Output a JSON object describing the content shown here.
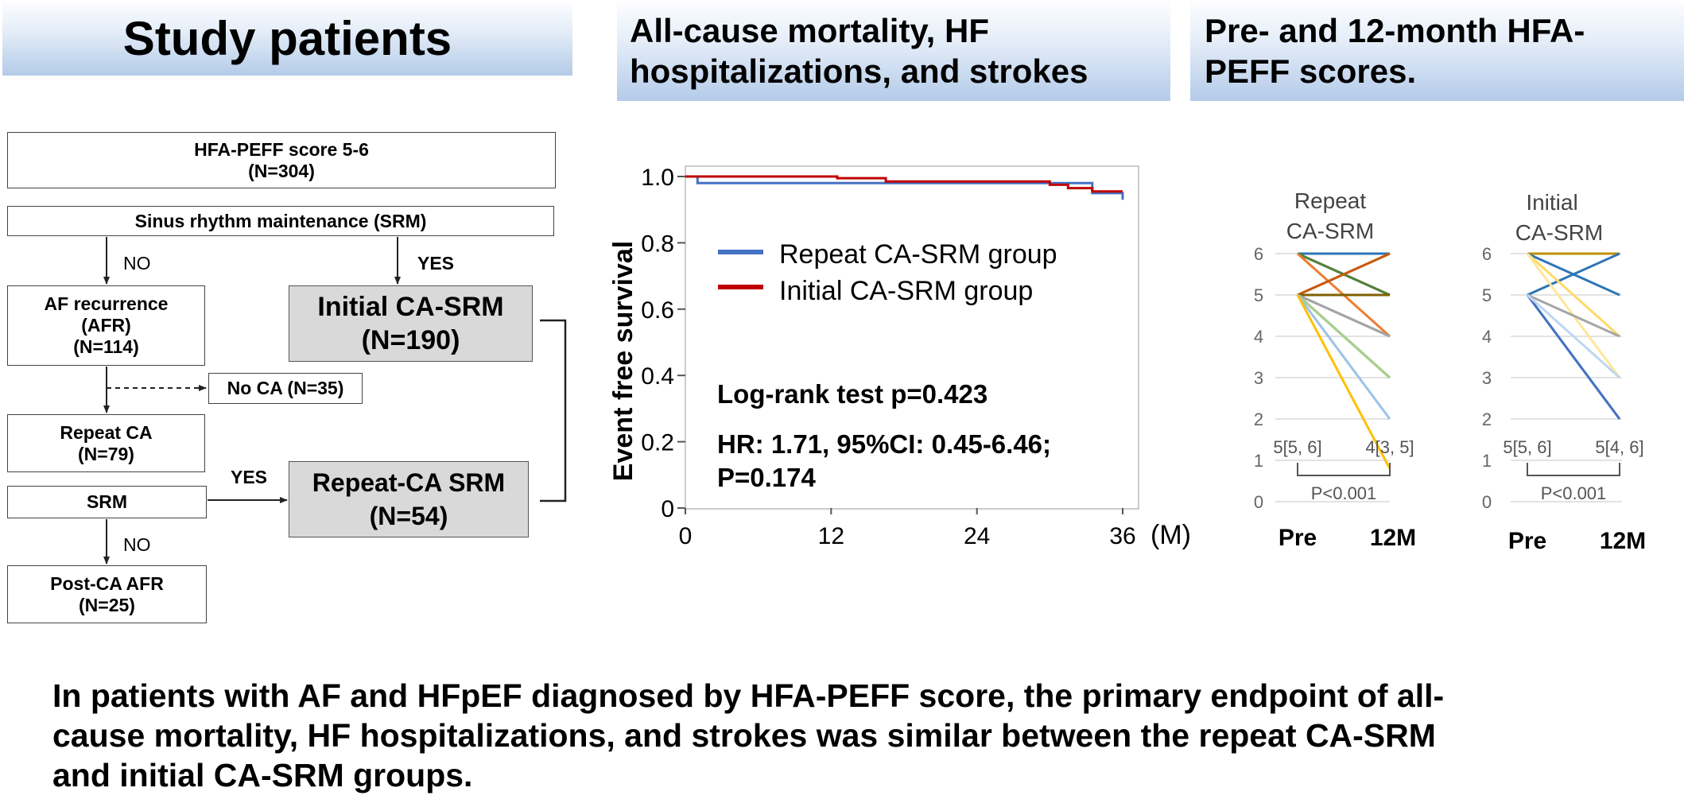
{
  "headers": {
    "study": "Study patients",
    "outcomes_line1": "All-cause mortality, HF",
    "outcomes_line2": "hospitalizations, and strokes",
    "scores_line1": "Pre- and 12-month HFA-",
    "scores_line2": "PEFF scores."
  },
  "flow": {
    "top": {
      "line1": "HFA-PEFF score 5-6",
      "line2": "(N=304)"
    },
    "srm_top": "Sinus rhythm maintenance (SRM)",
    "no1": "NO",
    "yes1": "YES",
    "afr": {
      "line1": "AF recurrence",
      "line2": "(AFR)",
      "line3": "(N=114)"
    },
    "initial": {
      "line1": "Initial CA-SRM",
      "line2": "(N=190)"
    },
    "noca": "No CA (N=35)",
    "repeat_ca": {
      "line1": "Repeat CA",
      "line2": "(N=79)"
    },
    "yes2": "YES",
    "srm": "SRM",
    "repeat_srm": {
      "line1": "Repeat-CA SRM",
      "line2": "(N=54)"
    },
    "no2": "NO",
    "post": {
      "line1": "Post-CA AFR",
      "line2": "(N=25)"
    }
  },
  "chart_data": [
    {
      "type": "line",
      "ylabel": "Event free survival",
      "xunit": "(M)",
      "xticks": [
        0,
        12,
        24,
        36
      ],
      "yticks": [
        0,
        0.2,
        0.4,
        0.6,
        0.8,
        1.0
      ],
      "xlim": [
        0,
        36
      ],
      "ylim": [
        0,
        1.0
      ],
      "colors": {
        "repeat": "#4472c4",
        "initial": "#c00000"
      },
      "series": [
        {
          "name": "Repeat CA-SRM group",
          "x": [
            0,
            1,
            1,
            33.5,
            33.5,
            36,
            36
          ],
          "y": [
            1.0,
            1.0,
            0.98,
            0.98,
            0.95,
            0.95,
            0.93
          ]
        },
        {
          "name": "Initial CA-SRM group",
          "x": [
            0,
            12.5,
            12.5,
            16.5,
            16.5,
            30,
            30,
            31.5,
            31.5,
            33.5,
            33.5,
            36
          ],
          "y": [
            1.0,
            1.0,
            0.995,
            0.995,
            0.985,
            0.985,
            0.975,
            0.975,
            0.965,
            0.965,
            0.955,
            0.955
          ]
        }
      ],
      "annotations": {
        "logrank": "Log-rank test p=0.423",
        "hr_line1": "HR: 1.71, 95%CI: 0.45-6.46;",
        "hr_line2": "P=0.174"
      }
    },
    {
      "type": "line",
      "title_line1": "Repeat",
      "title_line2": "CA-SRM",
      "categories": [
        "Pre",
        "12M"
      ],
      "yticks": [
        0,
        1,
        2,
        3,
        4,
        5,
        6
      ],
      "ylim": [
        0,
        6
      ],
      "pre_label": "5[5, 6]",
      "post_label": "4[3, 5]",
      "p_label": "P<0.001",
      "series": [
        {
          "values": [
            6,
            6
          ],
          "color": "#2e75b6"
        },
        {
          "values": [
            6,
            5
          ],
          "color": "#1f4e79"
        },
        {
          "values": [
            6,
            5
          ],
          "color": "#548235"
        },
        {
          "values": [
            6,
            4
          ],
          "color": "#ed7d31"
        },
        {
          "values": [
            5,
            6
          ],
          "color": "#ed7d31"
        },
        {
          "values": [
            5,
            6
          ],
          "color": "#c55a11"
        },
        {
          "values": [
            5,
            5
          ],
          "color": "#7f6000"
        },
        {
          "values": [
            5,
            4
          ],
          "color": "#7f7f7f"
        },
        {
          "values": [
            5,
            4
          ],
          "color": "#a5a5a5"
        },
        {
          "values": [
            5,
            3
          ],
          "color": "#375623"
        },
        {
          "values": [
            5,
            3
          ],
          "color": "#a9d18e"
        },
        {
          "values": [
            5,
            2
          ],
          "color": "#9dc3e6"
        },
        {
          "values": [
            5,
            0.8
          ],
          "color": "#ffc000"
        }
      ]
    },
    {
      "type": "line",
      "title_line1": "Initial",
      "title_line2": "CA-SRM",
      "categories": [
        "Pre",
        "12M"
      ],
      "yticks": [
        0,
        1,
        2,
        3,
        4,
        5,
        6
      ],
      "ylim": [
        0,
        6
      ],
      "pre_label": "5[5, 6]",
      "post_label": "5[4, 6]",
      "p_label": "P<0.001",
      "series": [
        {
          "values": [
            6,
            6
          ],
          "color": "#bf9000"
        },
        {
          "values": [
            6,
            5
          ],
          "color": "#2e75b6"
        },
        {
          "values": [
            5,
            6
          ],
          "color": "#2e75b6"
        },
        {
          "values": [
            6,
            4
          ],
          "color": "#ffd966"
        },
        {
          "values": [
            6,
            3
          ],
          "color": "#ffe699"
        },
        {
          "values": [
            5,
            4
          ],
          "color": "#a5a5a5"
        },
        {
          "values": [
            5,
            2
          ],
          "color": "#8faadc"
        },
        {
          "values": [
            5,
            2
          ],
          "color": "#4472c4"
        },
        {
          "values": [
            5,
            3
          ],
          "color": "#bdd7ee"
        }
      ]
    }
  ],
  "conclusion": {
    "line1": "In patients with AF and HFpEF diagnosed by HFA-PEFF score, the primary endpoint of all-",
    "line2": "cause mortality, HF hospitalizations, and strokes was similar between the repeat CA-SRM",
    "line3": "and initial CA-SRM groups."
  }
}
